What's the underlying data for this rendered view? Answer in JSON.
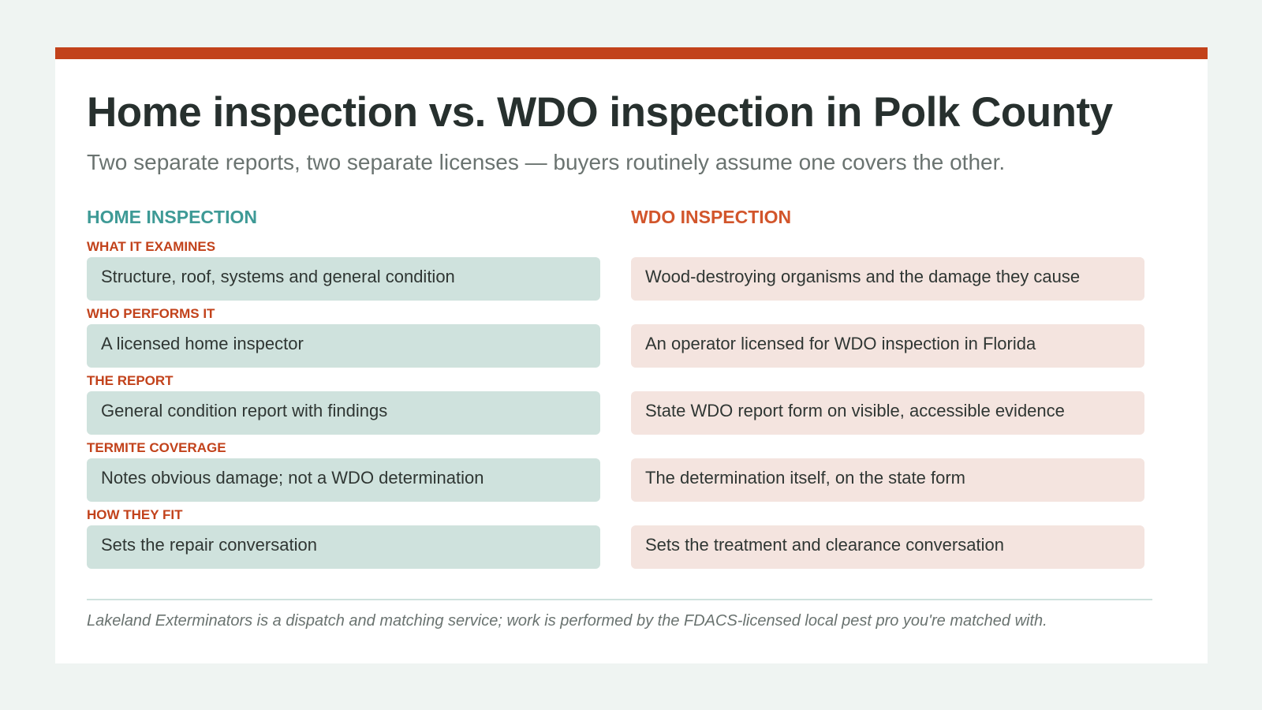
{
  "header": {
    "title": "Home inspection vs. WDO inspection in Polk County",
    "subtitle": "Two separate reports, two separate licenses — buyers routinely assume one covers the other."
  },
  "columns": {
    "left": "HOME INSPECTION",
    "right": "WDO INSPECTION"
  },
  "rows": [
    {
      "label": "WHAT IT EXAMINES",
      "home": "Structure, roof, systems and general condition",
      "wdo": "Wood-destroying organisms and the damage they cause"
    },
    {
      "label": "WHO PERFORMS IT",
      "home": "A licensed home inspector",
      "wdo": "An operator licensed for WDO inspection in Florida"
    },
    {
      "label": "THE REPORT",
      "home": "General condition report with findings",
      "wdo": "State WDO report form on visible, accessible evidence"
    },
    {
      "label": "TERMITE COVERAGE",
      "home": "Notes obvious damage; not a WDO determination",
      "wdo": "The determination itself, on the state form"
    },
    {
      "label": "HOW THEY FIT",
      "home": "Sets the repair conversation",
      "wdo": "Sets the treatment and clearance conversation"
    }
  ],
  "footnote": "Lakeland Exterminators is a dispatch and matching service; work is performed by the FDACS-licensed local pest pro you're matched with.",
  "colors": {
    "accent": "#c2421b",
    "home": "#3e9a96",
    "wdo": "#d2552b",
    "home_cell": "#cfe2dd",
    "wdo_cell": "#f4e4df"
  }
}
